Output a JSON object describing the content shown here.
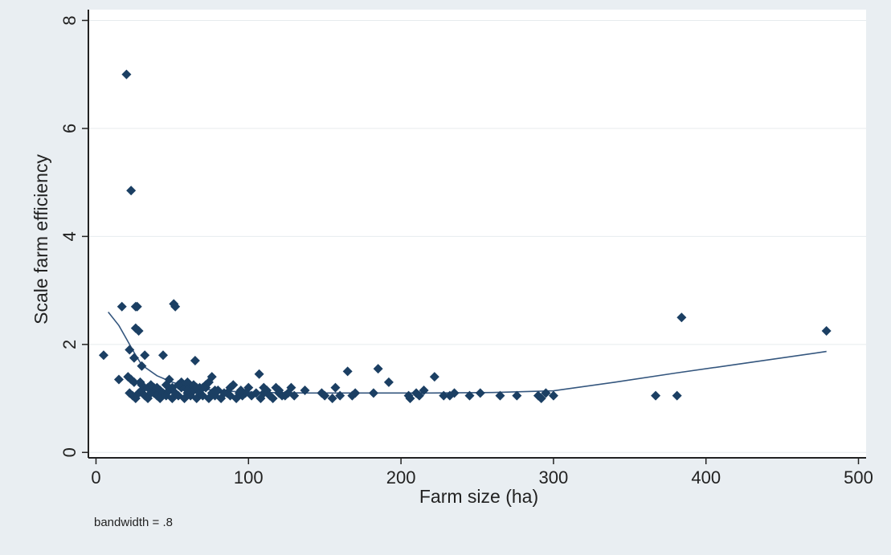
{
  "chart_data": {
    "type": "scatter",
    "xlabel": "Farm size (ha)",
    "ylabel": "Scale farm efficiency",
    "note": "bandwidth = .8",
    "xlim": [
      -5,
      505
    ],
    "ylim": [
      -0.1,
      8.2
    ],
    "xticks": [
      0,
      100,
      200,
      300,
      400,
      500
    ],
    "yticks": [
      0,
      2,
      4,
      6,
      8
    ],
    "grid": true,
    "colors": {
      "background": "#e9eef2",
      "plot_area": "#ffffff",
      "marker": "#1b3f63",
      "line": "#34567e",
      "grid": "#e6ebee"
    },
    "series": [
      {
        "type": "scatter",
        "marker": "diamond",
        "points": [
          [
            5,
            1.8
          ],
          [
            15,
            1.35
          ],
          [
            17,
            2.7
          ],
          [
            20,
            7.0
          ],
          [
            21,
            1.4
          ],
          [
            22,
            1.9
          ],
          [
            23,
            1.35
          ],
          [
            23,
            4.85
          ],
          [
            25,
            1.75
          ],
          [
            25,
            1.3
          ],
          [
            26,
            2.3
          ],
          [
            26,
            2.7
          ],
          [
            27,
            2.7
          ],
          [
            28,
            2.25
          ],
          [
            29,
            1.3
          ],
          [
            30,
            1.6
          ],
          [
            32,
            1.8
          ],
          [
            35,
            1.2
          ],
          [
            38,
            1.1
          ],
          [
            42,
            1.15
          ],
          [
            44,
            1.8
          ],
          [
            48,
            1.35
          ],
          [
            51,
            2.75
          ],
          [
            52,
            2.7
          ],
          [
            56,
            1.3
          ],
          [
            58,
            1.25
          ],
          [
            62,
            1.2
          ],
          [
            65,
            1.7
          ],
          [
            68,
            1.2
          ],
          [
            72,
            1.25
          ],
          [
            76,
            1.4
          ],
          [
            80,
            1.15
          ],
          [
            86,
            1.1
          ],
          [
            90,
            1.25
          ],
          [
            95,
            1.15
          ],
          [
            100,
            1.2
          ],
          [
            105,
            1.1
          ],
          [
            107,
            1.45
          ],
          [
            112,
            1.15
          ],
          [
            118,
            1.2
          ],
          [
            124,
            1.05
          ],
          [
            128,
            1.2
          ],
          [
            137,
            1.15
          ],
          [
            148,
            1.1
          ],
          [
            157,
            1.2
          ],
          [
            165,
            1.5
          ],
          [
            170,
            1.1
          ],
          [
            182,
            1.1
          ],
          [
            185,
            1.55
          ],
          [
            192,
            1.3
          ],
          [
            205,
            1.05
          ],
          [
            210,
            1.1
          ],
          [
            215,
            1.15
          ],
          [
            222,
            1.4
          ],
          [
            228,
            1.05
          ],
          [
            235,
            1.1
          ],
          [
            245,
            1.05
          ],
          [
            252,
            1.1
          ],
          [
            265,
            1.05
          ],
          [
            276,
            1.05
          ],
          [
            290,
            1.05
          ],
          [
            295,
            1.1
          ],
          [
            300,
            1.05
          ],
          [
            367,
            1.05
          ],
          [
            381,
            1.05
          ],
          [
            384,
            2.5
          ],
          [
            479,
            2.25
          ],
          [
            22,
            1.1
          ],
          [
            24,
            1.05
          ],
          [
            26,
            1.0
          ],
          [
            28,
            1.1
          ],
          [
            30,
            1.15
          ],
          [
            32,
            1.05
          ],
          [
            34,
            1.0
          ],
          [
            36,
            1.1
          ],
          [
            38,
            1.2
          ],
          [
            40,
            1.05
          ],
          [
            42,
            1.0
          ],
          [
            44,
            1.1
          ],
          [
            46,
            1.05
          ],
          [
            48,
            1.15
          ],
          [
            50,
            1.0
          ],
          [
            52,
            1.1
          ],
          [
            54,
            1.05
          ],
          [
            56,
            1.2
          ],
          [
            58,
            1.0
          ],
          [
            60,
            1.1
          ],
          [
            62,
            1.05
          ],
          [
            64,
            1.15
          ],
          [
            66,
            1.0
          ],
          [
            68,
            1.1
          ],
          [
            70,
            1.05
          ],
          [
            72,
            1.2
          ],
          [
            74,
            1.0
          ],
          [
            76,
            1.1
          ],
          [
            78,
            1.05
          ],
          [
            82,
            1.0
          ],
          [
            84,
            1.1
          ],
          [
            88,
            1.05
          ],
          [
            92,
            1.0
          ],
          [
            96,
            1.05
          ],
          [
            98,
            1.1
          ],
          [
            102,
            1.05
          ],
          [
            108,
            1.0
          ],
          [
            110,
            1.1
          ],
          [
            114,
            1.05
          ],
          [
            116,
            1.0
          ],
          [
            120,
            1.1
          ],
          [
            122,
            1.05
          ],
          [
            126,
            1.1
          ],
          [
            130,
            1.05
          ],
          [
            150,
            1.05
          ],
          [
            155,
            1.0
          ],
          [
            160,
            1.05
          ],
          [
            168,
            1.05
          ],
          [
            206,
            1.0
          ],
          [
            212,
            1.05
          ],
          [
            232,
            1.05
          ],
          [
            292,
            1.0
          ],
          [
            30,
            1.25
          ],
          [
            34,
            1.2
          ],
          [
            46,
            1.25
          ],
          [
            54,
            1.25
          ],
          [
            60,
            1.3
          ],
          [
            64,
            1.25
          ],
          [
            70,
            1.2
          ],
          [
            74,
            1.3
          ],
          [
            78,
            1.15
          ],
          [
            88,
            1.2
          ],
          [
            94,
            1.1
          ],
          [
            110,
            1.2
          ],
          [
            120,
            1.15
          ],
          [
            50,
            1.2
          ],
          [
            36,
            1.25
          ],
          [
            60,
            1.15
          ],
          [
            40,
            1.2
          ],
          [
            66,
            1.2
          ]
        ]
      },
      {
        "type": "line",
        "points": [
          [
            8,
            2.6
          ],
          [
            15,
            2.35
          ],
          [
            20,
            2.1
          ],
          [
            25,
            1.85
          ],
          [
            30,
            1.62
          ],
          [
            40,
            1.42
          ],
          [
            50,
            1.3
          ],
          [
            60,
            1.22
          ],
          [
            75,
            1.16
          ],
          [
            90,
            1.13
          ],
          [
            110,
            1.11
          ],
          [
            140,
            1.1
          ],
          [
            180,
            1.1
          ],
          [
            220,
            1.1
          ],
          [
            260,
            1.11
          ],
          [
            300,
            1.14
          ],
          [
            340,
            1.3
          ],
          [
            380,
            1.47
          ],
          [
            420,
            1.63
          ],
          [
            479,
            1.87
          ]
        ]
      }
    ]
  }
}
